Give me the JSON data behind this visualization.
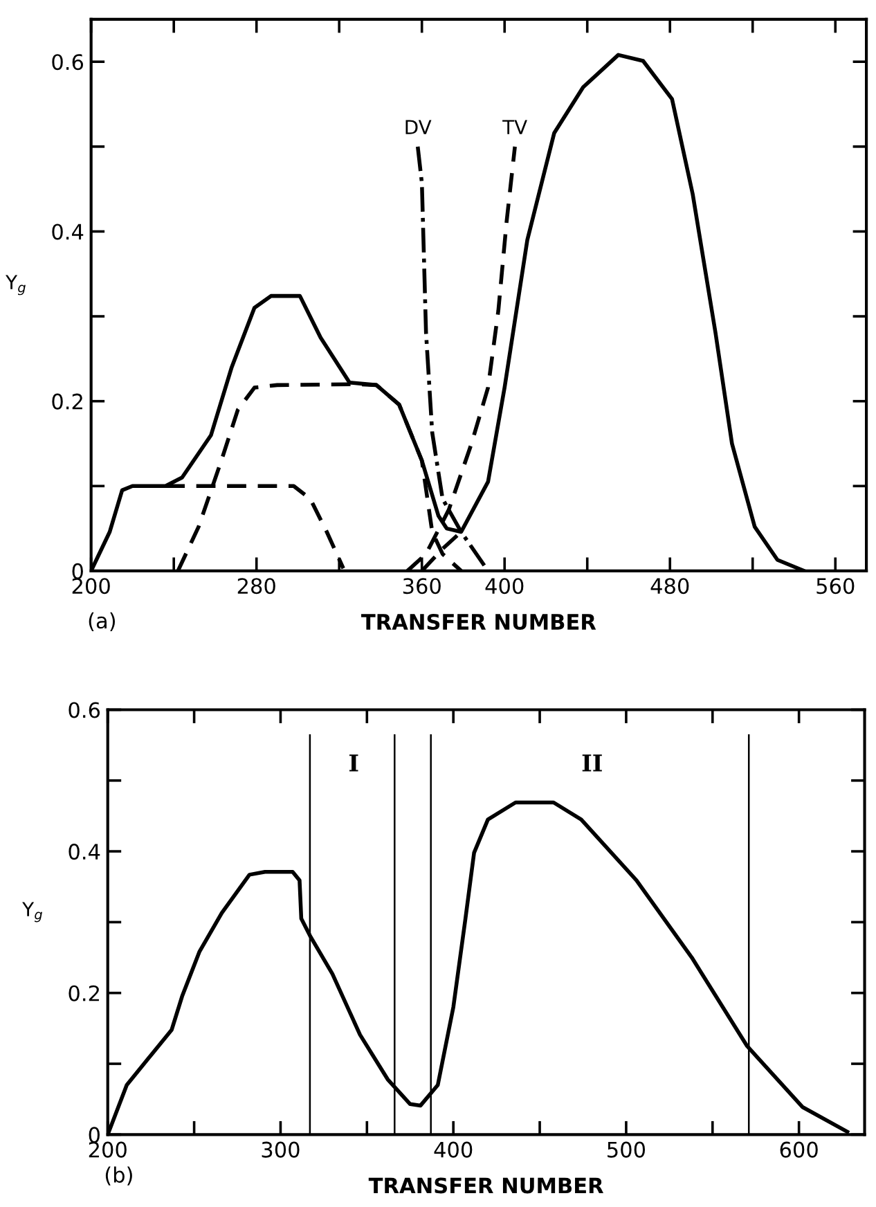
{
  "chart_data": [
    {
      "type": "line",
      "xlabel": "TRANSFER NUMBER",
      "ylabel": "Y$_{g}$",
      "xlim": [
        200,
        575
      ],
      "ylim": [
        0,
        0.65
      ],
      "xticks": [
        200,
        {
          "value": 240,
          "label": null
        },
        280,
        {
          "value": 320,
          "label": null
        },
        360,
        400,
        {
          "value": 440,
          "label": null
        },
        480,
        {
          "value": 520,
          "label": null
        },
        560
      ],
      "yticks": [
        0,
        {
          "value": 0.1,
          "label": null
        },
        0.2,
        {
          "value": 0.3,
          "label": null
        },
        0.4,
        {
          "value": 0.5,
          "label": null
        },
        0.6
      ],
      "grid": false,
      "legend": false,
      "marker": "none",
      "annotations": [
        "(a)"
      ],
      "series": [
        {
          "color": "#000000",
          "line_style": "solid",
          "x": [
            200,
            209,
            215,
            220,
            236,
            244,
            258,
            268,
            279,
            287,
            301,
            311,
            325,
            338,
            349,
            360,
            368,
            372,
            379,
            392,
            400,
            411,
            424,
            438,
            455,
            467,
            481,
            491,
            502,
            510,
            521,
            532,
            545
          ],
          "values": [
            0,
            0.046,
            0.095,
            0.1,
            0.1,
            0.11,
            0.16,
            0.24,
            0.31,
            0.324,
            0.324,
            0.275,
            0.222,
            0.219,
            0.196,
            0.13,
            0.065,
            0.05,
            0.046,
            0.105,
            0.216,
            0.39,
            0.516,
            0.57,
            0.608,
            0.601,
            0.556,
            0.444,
            0.281,
            0.15,
            0.052,
            0.013,
            0
          ]
        },
        {
          "color": "#000000",
          "line_style": "dashed",
          "x": [
            236,
            298,
            306,
            314,
            322
          ],
          "values": [
            0.1,
            0.1,
            0.085,
            0.046,
            0.003
          ]
        },
        {
          "color": "#000000",
          "line_style": "dashed",
          "x": [
            242,
            252,
            263,
            271,
            279,
            290,
            328,
            338,
            349,
            360,
            365,
            370,
            379
          ],
          "values": [
            0,
            0.052,
            0.13,
            0.19,
            0.216,
            0.219,
            0.22,
            0.219,
            0.196,
            0.13,
            0.046,
            0.02,
            0
          ]
        },
        {
          "name": "DV",
          "color": "#000000",
          "line_style": "dashdot",
          "x": [
            358,
            360,
            362,
            365,
            370,
            379,
            392
          ],
          "values": [
            0.5,
            0.457,
            0.281,
            0.163,
            0.085,
            0.046,
            0
          ]
        },
        {
          "name": "TV",
          "color": "#000000",
          "line_style": "dashed",
          "x": [
            353,
            362,
            373,
            384,
            392,
            397,
            401,
            405
          ],
          "values": [
            0,
            0.02,
            0.072,
            0.15,
            0.216,
            0.307,
            0.412,
            0.5
          ]
        },
        {
          "color": "#000000",
          "line_style": "dashed",
          "x": [
            360,
            370,
            379
          ],
          "values": [
            0,
            0.026,
            0.046
          ]
        }
      ]
    },
    {
      "type": "line",
      "xlabel": "TRANSFER NUMBER",
      "ylabel": "Y$_{g}$",
      "xlim": [
        200,
        638
      ],
      "ylim": [
        0,
        0.6
      ],
      "xticks": [
        200,
        {
          "value": 250,
          "label": null
        },
        300,
        {
          "value": 350,
          "label": null
        },
        400,
        {
          "value": 450,
          "label": null
        },
        500,
        {
          "value": 550,
          "label": null
        },
        600
      ],
      "yticks": [
        0,
        {
          "value": 0.1,
          "label": null
        },
        0.2,
        {
          "value": 0.3,
          "label": null
        },
        0.4,
        {
          "value": 0.5,
          "label": null
        },
        0.6
      ],
      "grid": false,
      "legend": false,
      "marker": "none",
      "annotations": [
        "(b)",
        "I",
        "II"
      ],
      "ref_lines": [
        {
          "axis": "x",
          "value": 317
        },
        {
          "axis": "x",
          "value": 366
        },
        {
          "axis": "x",
          "value": 387
        },
        {
          "axis": "x",
          "value": 571
        }
      ],
      "series": [
        {
          "color": "#000000",
          "line_style": "solid",
          "x": [
            200,
            211,
            224,
            237,
            243,
            253,
            266,
            282,
            291,
            307,
            311,
            312,
            317,
            330,
            346,
            362,
            375,
            381,
            391,
            400,
            407,
            412,
            420,
            436,
            458,
            474,
            506,
            538,
            570,
            602,
            628
          ],
          "values": [
            0,
            0.07,
            0.109,
            0.148,
            0.195,
            0.258,
            0.313,
            0.367,
            0.371,
            0.371,
            0.359,
            0.305,
            0.281,
            0.227,
            0.141,
            0.078,
            0.043,
            0.041,
            0.07,
            0.18,
            0.305,
            0.398,
            0.445,
            0.469,
            0.469,
            0.445,
            0.359,
            0.25,
            0.125,
            0.039,
            0.004
          ]
        }
      ]
    }
  ]
}
